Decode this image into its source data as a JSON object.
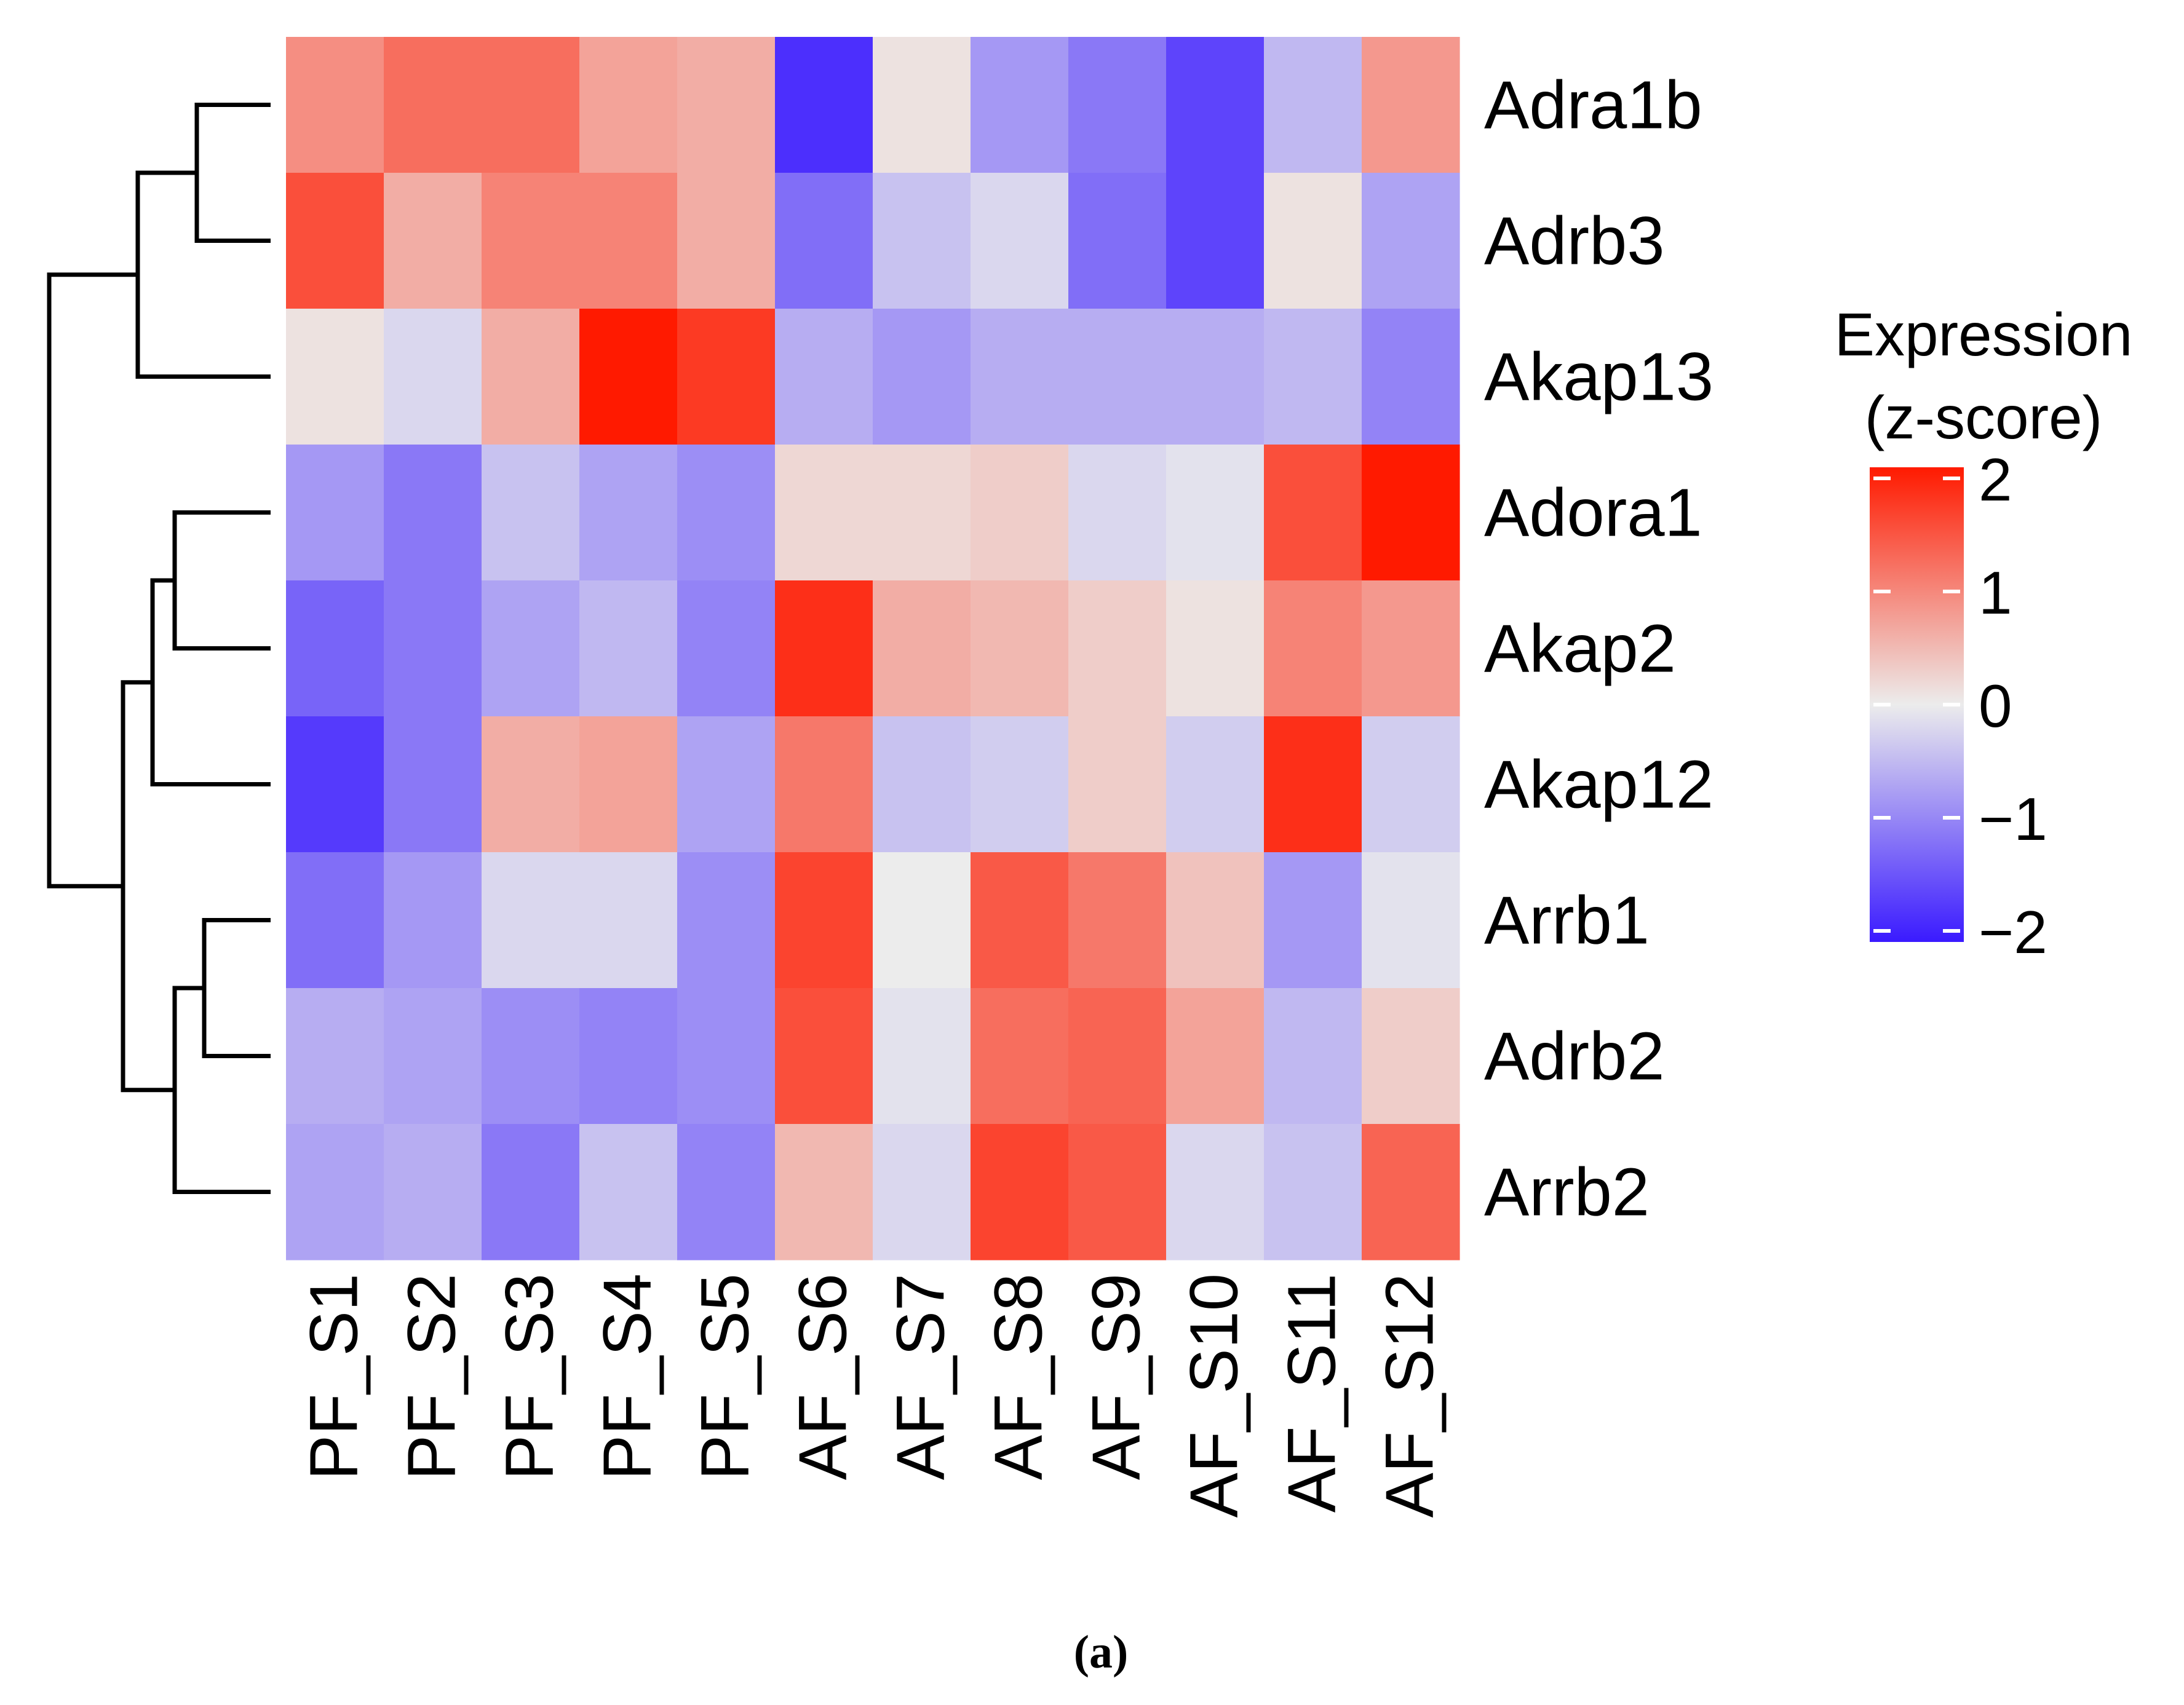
{
  "chart_data": {
    "type": "heatmap",
    "title": "",
    "rows": [
      "Adra1b",
      "Adrb3",
      "Akap13",
      "Adora1",
      "Akap2",
      "Akap12",
      "Arrb1",
      "Adrb2",
      "Arrb2"
    ],
    "columns": [
      "PF_S1",
      "PF_S2",
      "PF_S3",
      "PF_S4",
      "PF_S5",
      "AF_S6",
      "AF_S7",
      "AF_S8",
      "AF_S9",
      "AF_S10",
      "AF_S11",
      "AF_S12"
    ],
    "values": [
      [
        0.9,
        1.2,
        1.2,
        0.7,
        0.6,
        -1.8,
        0.1,
        -0.8,
        -1.1,
        -1.6,
        -0.5,
        0.8
      ],
      [
        1.5,
        0.6,
        1.0,
        1.0,
        0.6,
        -1.2,
        -0.4,
        -0.2,
        -1.2,
        -1.6,
        0.1,
        -0.7
      ],
      [
        0.1,
        -0.2,
        0.6,
        2.0,
        1.7,
        -0.6,
        -0.8,
        -0.6,
        -0.6,
        -0.6,
        -0.5,
        -1.0
      ],
      [
        -0.8,
        -1.1,
        -0.4,
        -0.7,
        -0.9,
        0.2,
        0.2,
        0.3,
        -0.2,
        -0.1,
        1.5,
        2.0
      ],
      [
        -1.3,
        -1.1,
        -0.7,
        -0.5,
        -1.0,
        1.8,
        0.6,
        0.5,
        0.3,
        0.1,
        1.0,
        0.8
      ],
      [
        -1.7,
        -1.1,
        0.6,
        0.7,
        -0.7,
        1.1,
        -0.4,
        -0.3,
        0.3,
        -0.3,
        1.8,
        -0.3
      ],
      [
        -1.2,
        -0.8,
        -0.2,
        -0.2,
        -0.9,
        1.6,
        0.0,
        1.4,
        1.1,
        0.4,
        -0.8,
        -0.1
      ],
      [
        -0.6,
        -0.7,
        -0.9,
        -1.0,
        -0.9,
        1.5,
        -0.1,
        1.2,
        1.3,
        0.7,
        -0.5,
        0.3
      ],
      [
        -0.7,
        -0.6,
        -1.1,
        -0.4,
        -1.0,
        0.5,
        -0.2,
        1.6,
        1.4,
        -0.2,
        -0.4,
        1.3
      ]
    ],
    "color_scale": {
      "min": -2,
      "mid": 0,
      "max": 2,
      "low_color": "#3a1aff",
      "mid_color": "#ececec",
      "high_color": "#ff1a00"
    },
    "legend": {
      "title_line1": "Expression",
      "title_line2": "(z-score)",
      "ticks": [
        {
          "value": 2,
          "label": "2"
        },
        {
          "value": 1,
          "label": "1"
        },
        {
          "value": 0,
          "label": "0"
        },
        {
          "value": -1,
          "label": "−1"
        },
        {
          "value": -2,
          "label": "−2"
        }
      ],
      "placement": "right"
    },
    "row_dendrogram": {
      "note": "heights are cluster distances in arbitrary units",
      "merges": [
        {
          "name": "adra-adrb3",
          "a": {
            "leaf": 0
          },
          "b": {
            "leaf": 1
          },
          "height": 1.0
        },
        {
          "name": "top-cluster",
          "a": {
            "node": "adra-adrb3"
          },
          "b": {
            "leaf": 2
          },
          "height": 1.8
        },
        {
          "name": "adora-akap2",
          "a": {
            "leaf": 3
          },
          "b": {
            "leaf": 4
          },
          "height": 1.3
        },
        {
          "name": "adora-akap12",
          "a": {
            "node": "adora-akap2"
          },
          "b": {
            "leaf": 5
          },
          "height": 1.6
        },
        {
          "name": "arrb1-adrb2",
          "a": {
            "leaf": 6
          },
          "b": {
            "leaf": 7
          },
          "height": 0.9
        },
        {
          "name": "arrb-cluster",
          "a": {
            "node": "arrb1-adrb2"
          },
          "b": {
            "leaf": 8
          },
          "height": 1.3
        },
        {
          "name": "bottom-cluster",
          "a": {
            "node": "adora-akap12"
          },
          "b": {
            "node": "arrb-cluster"
          },
          "height": 2.0
        },
        {
          "name": "root",
          "a": {
            "node": "top-cluster"
          },
          "b": {
            "node": "bottom-cluster"
          },
          "height": 3.0
        }
      ]
    }
  },
  "caption": "(a)"
}
